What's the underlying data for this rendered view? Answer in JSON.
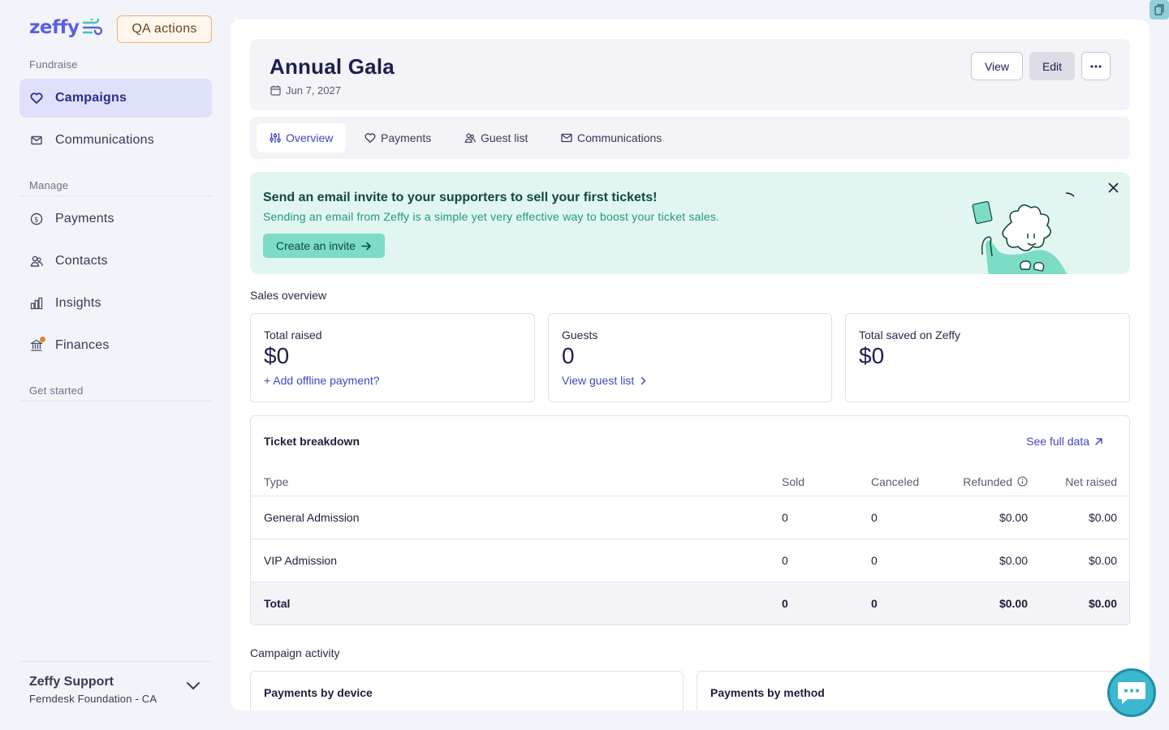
{
  "sidebar": {
    "logo": "zeffy",
    "qa_button": "QA actions",
    "sections": {
      "fundraise": "Fundraise",
      "manage": "Manage",
      "get_started": "Get started"
    },
    "items": {
      "campaigns": "Campaigns",
      "communications": "Communications",
      "payments": "Payments",
      "contacts": "Contacts",
      "insights": "Insights",
      "finances": "Finances"
    },
    "account": {
      "name": "Zeffy Support",
      "org": "Ferndesk Foundation - CA"
    }
  },
  "header": {
    "title": "Annual Gala",
    "date": "Jun 7, 2027",
    "view_label": "View",
    "edit_label": "Edit"
  },
  "tabs": [
    "Overview",
    "Payments",
    "Guest list",
    "Communications"
  ],
  "banner": {
    "title": "Send an email invite to your supporters to sell your first tickets!",
    "subtitle": "Sending an email from Zeffy is a simple yet very effective way to boost your ticket sales.",
    "cta": "Create an invite"
  },
  "sales_overview": {
    "heading": "Sales overview",
    "total_raised": {
      "label": "Total raised",
      "value": "$0",
      "link": "+ Add offline payment?"
    },
    "guests": {
      "label": "Guests",
      "value": "0",
      "link": "View guest list"
    },
    "saved": {
      "label": "Total saved on Zeffy",
      "value": "$0"
    }
  },
  "ticket_breakdown": {
    "title": "Ticket breakdown",
    "link": "See full data",
    "columns": [
      "Type",
      "Sold",
      "Canceled",
      "Refunded",
      "Net raised"
    ],
    "rows": [
      [
        "General Admission",
        "0",
        "0",
        "$0.00",
        "$0.00"
      ],
      [
        "VIP Admission",
        "0",
        "0",
        "$0.00",
        "$0.00"
      ]
    ],
    "total": [
      "Total",
      "0",
      "0",
      "$0.00",
      "$0.00"
    ]
  },
  "campaign_activity": {
    "heading": "Campaign activity",
    "cards": [
      "Payments by device",
      "Payments by method"
    ]
  },
  "colors": {
    "accent": "#4046c6",
    "active_nav": "#dfe0fb",
    "banner_bg": "#e2f6f1",
    "banner_btn": "#7cdcc6"
  }
}
